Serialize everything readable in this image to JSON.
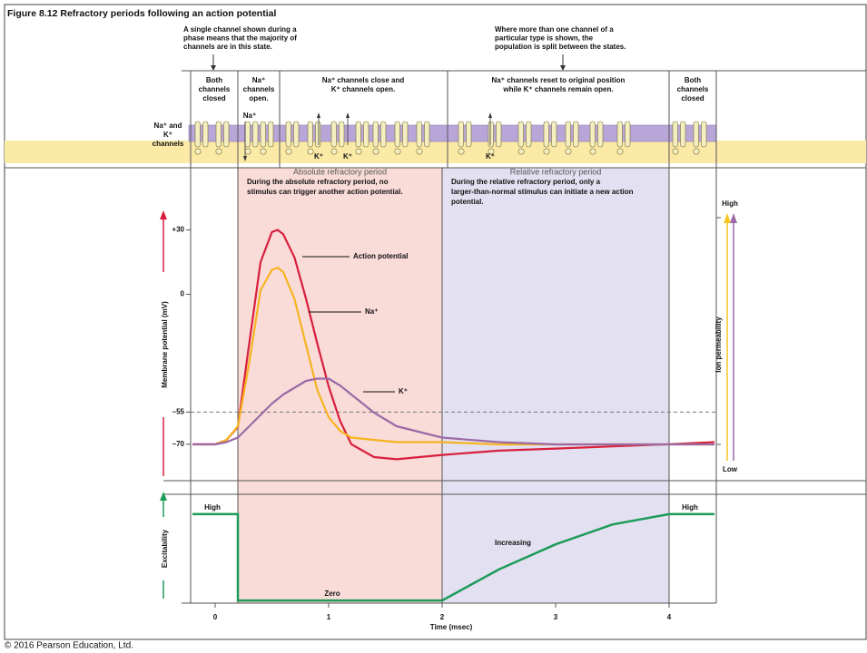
{
  "title": "Figure 8.12 Refractory periods following an action potential",
  "notes": {
    "left": [
      "A single channel shown during a",
      "phase means that the majority of",
      "channels are in this state."
    ],
    "right": [
      "Where more than one channel of a",
      "particular type is shown, the",
      "population is split between the states."
    ]
  },
  "phases": [
    [
      "Both",
      "channels",
      "closed"
    ],
    [
      "Na⁺",
      "channels",
      "open."
    ],
    [
      "Na⁺ channels close and",
      "K⁺ channels open."
    ],
    [
      "Na⁺ channels reset to original position",
      "while K⁺ channels remain open."
    ],
    [
      "Both",
      "channels",
      "closed"
    ]
  ],
  "channel_label": [
    "Na⁺ and",
    "K⁺",
    "channels"
  ],
  "ion_labels": [
    "Na⁺",
    "K⁺",
    "K⁺",
    "K⁺"
  ],
  "chart_data": [
    {
      "type": "line",
      "y_label": "Membrane potential (mV)",
      "y2_label": "Ion permeability",
      "x": [
        -0.2,
        0,
        0.1,
        0.2,
        0.3,
        0.4,
        0.5,
        0.55,
        0.6,
        0.7,
        0.8,
        0.9,
        1.0,
        1.1,
        1.2,
        1.4,
        1.6,
        2.0,
        2.5,
        3.0,
        3.5,
        4.0,
        4.4
      ],
      "xlim": [
        -0.2,
        4.4
      ],
      "ylim": [
        -87,
        59
      ],
      "yticks": [
        {
          "value": 30,
          "label": "+30"
        },
        0,
        {
          "value": -55,
          "label": "–55"
        },
        {
          "value": -70,
          "label": "–70"
        }
      ],
      "y2lim": [
        -0.16,
        1.22
      ],
      "y2ticks": [
        {
          "value": 0,
          "label": "Low"
        },
        {
          "value": 1,
          "label": "High"
        }
      ],
      "reference_line": {
        "y": -55,
        "dashed": true
      },
      "periods": [
        {
          "name": "Absolute refractory period",
          "text": [
            "During the absolute refractory period, no",
            "stimulus can trigger another action potential."
          ],
          "x": [
            0.2,
            2
          ],
          "color": "#f9dcd8"
        },
        {
          "name": "Relative refractory period",
          "text": [
            "During the relative refractory period, only a",
            "larger-than-normal stimulus can initiate a new action",
            "potential."
          ],
          "x": [
            2,
            4
          ],
          "color": "#e3e1f1"
        }
      ],
      "series": [
        {
          "name": "Action potential",
          "color": "#d81e3c",
          "values": [
            -70,
            -70,
            -68,
            -62,
            -23,
            15,
            29,
            30,
            28,
            17,
            -2,
            -23,
            -43,
            -59,
            -70,
            -76,
            -77,
            -75,
            -73,
            -72,
            -71,
            -70,
            -69
          ]
        },
        {
          "name": "Na⁺",
          "color": "#f7b320",
          "axis": "y2",
          "values": [
            0,
            0,
            0.02,
            0.08,
            0.36,
            0.68,
            0.77,
            0.78,
            0.76,
            0.64,
            0.44,
            0.24,
            0.12,
            0.06,
            0.03,
            0.02,
            0.01,
            0.01,
            0,
            0,
            0,
            0,
            0
          ]
        },
        {
          "name": "K⁺",
          "color": "#9b6aa6",
          "axis": "y2",
          "values": [
            0,
            0,
            0.01,
            0.03,
            0.08,
            0.13,
            0.18,
            0.2,
            0.22,
            0.25,
            0.28,
            0.29,
            0.29,
            0.26,
            0.22,
            0.14,
            0.08,
            0.03,
            0.01,
            0,
            0,
            0,
            0
          ]
        }
      ]
    },
    {
      "type": "line",
      "y_label": "Excitability",
      "x_label": "Time (msec)",
      "x": [
        -0.2,
        0.2,
        0.2,
        2,
        2.5,
        3,
        3.5,
        4,
        4.4
      ],
      "xlim": [
        -0.2,
        4.4
      ],
      "ylim": [
        -0.03,
        1.23
      ],
      "xticks": [
        0,
        1,
        2,
        3,
        4
      ],
      "color": "#1e9a5a",
      "values": [
        1,
        1,
        0,
        0,
        0.36,
        0.65,
        0.88,
        1,
        1
      ],
      "annotations": [
        "High",
        "Zero",
        "Increasing",
        "High"
      ]
    }
  ],
  "copyright": "© 2016 Pearson Education, Ltd."
}
